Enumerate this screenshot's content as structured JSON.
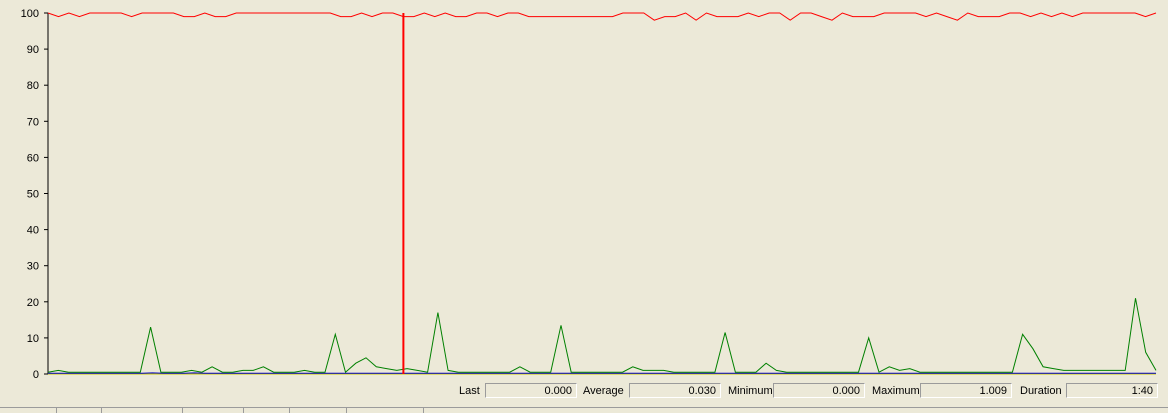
{
  "chart_data": {
    "type": "line",
    "ylim": [
      0,
      100
    ],
    "yticks": [
      "100",
      "90",
      "80",
      "70",
      "60",
      "50",
      "40",
      "30",
      "20",
      "10",
      "0"
    ],
    "grid": false,
    "cursor_index": 34,
    "series": [
      {
        "color": "#FF0000",
        "values": [
          100,
          99,
          100,
          99,
          100,
          100,
          100,
          100,
          99,
          100,
          100,
          100,
          100,
          99,
          99,
          100,
          99,
          99,
          100,
          100,
          100,
          100,
          100,
          100,
          100,
          100,
          100,
          100,
          99,
          99,
          100,
          99,
          100,
          100,
          99,
          99,
          100,
          99,
          100,
          99,
          99,
          100,
          100,
          99,
          100,
          100,
          99,
          99,
          99,
          99,
          99,
          99,
          99,
          99,
          99,
          100,
          100,
          100,
          98,
          99,
          99,
          100,
          98,
          100,
          99,
          99,
          99,
          100,
          99,
          100,
          100,
          98,
          100,
          100,
          99,
          98,
          100,
          99,
          99,
          99,
          100,
          100,
          100,
          100,
          99,
          100,
          99,
          98,
          100,
          99,
          99,
          99,
          100,
          100,
          99,
          100,
          99,
          100,
          99,
          100,
          100,
          100,
          100,
          100,
          100,
          99,
          100
        ]
      },
      {
        "color": "#008000",
        "values": [
          0.5,
          1,
          0.5,
          0.5,
          0.5,
          0.5,
          0.5,
          0.5,
          0.5,
          0.5,
          13,
          0.5,
          0.5,
          0.5,
          1,
          0.5,
          2,
          0.5,
          0.5,
          1,
          1,
          2,
          0.5,
          0.5,
          0.5,
          1,
          0.5,
          0.5,
          11,
          0.5,
          3,
          4.5,
          2,
          1.5,
          1,
          1.5,
          1,
          0.5,
          17,
          1,
          0.5,
          0.5,
          0.5,
          0.5,
          0.5,
          0.5,
          2,
          0.5,
          0.5,
          0.5,
          13.5,
          0.5,
          0.5,
          0.5,
          0.5,
          0.5,
          0.5,
          2,
          1,
          1,
          1,
          0.5,
          0.5,
          0.5,
          0.5,
          0.5,
          11.5,
          0.5,
          0.5,
          0.5,
          3,
          1,
          0.5,
          0.5,
          0.5,
          0.5,
          0.5,
          0.5,
          0.5,
          0.5,
          10,
          0.5,
          2,
          1,
          1.5,
          0.5,
          0.5,
          0.5,
          0.5,
          0.5,
          0.5,
          0.5,
          0.5,
          0.5,
          0.5,
          11,
          7,
          2,
          1.5,
          1,
          1,
          1,
          1,
          1,
          1,
          1,
          21,
          6,
          1
        ]
      },
      {
        "color": "#0000CC",
        "values": [
          0.2,
          0.2,
          0.2,
          0.2,
          0.2,
          0.2,
          0.2,
          0.2,
          0.2,
          0.2,
          0.3,
          0.2,
          0.2,
          0.2,
          0.3,
          0.2,
          0.2,
          0.2,
          0.2,
          0.2,
          0.2,
          0.2,
          0.2,
          0.2,
          0.2,
          0.2,
          0.2,
          0.2,
          0.2,
          0.2,
          0.2,
          0.2,
          0.2,
          0.2,
          0.2,
          0.2,
          0.2,
          0.2,
          0.2,
          0.2,
          0.2,
          0.2,
          0.2,
          0.2,
          0.2,
          0.2,
          0.2,
          0.2,
          0.2,
          0.2,
          0.2,
          0.2,
          0.2,
          0.2,
          0.2,
          0.2,
          0.2,
          0.2,
          0.2,
          0.2,
          0.2,
          0.2,
          0.2,
          0.2,
          0.2,
          0.2,
          0.2,
          0.2,
          0.2,
          0.2,
          0.2,
          0.2,
          0.2,
          0.2,
          0.2,
          0.2,
          0.2,
          0.2,
          0.2,
          0.2,
          0.2,
          0.2,
          0.2,
          0.2,
          0.2,
          0.2,
          0.2,
          0.2,
          0.2,
          0.2,
          0.2,
          0.2,
          0.2,
          0.2,
          0.2,
          0.2,
          0.2,
          0.2,
          0.2,
          0.2,
          0.2,
          0.2,
          0.2,
          0.2,
          0.2,
          0.2,
          0.2
        ]
      },
      {
        "color": "#C8C800",
        "values": [
          0,
          0,
          0,
          0,
          0,
          0,
          0,
          0,
          0,
          0,
          0,
          0,
          0,
          0,
          0,
          0,
          0,
          0,
          0,
          0,
          0,
          0,
          0,
          0,
          0,
          0,
          0,
          0,
          0,
          0,
          0,
          0,
          0,
          0,
          0,
          0,
          0,
          0,
          0,
          0,
          0,
          0,
          0,
          0,
          0,
          0,
          0,
          0,
          0,
          0,
          0,
          0,
          0,
          0,
          0,
          0,
          0,
          0,
          0,
          0,
          0,
          0,
          0,
          0,
          0,
          0,
          0,
          0,
          0,
          0,
          0,
          0,
          0,
          0,
          0,
          0,
          0,
          0,
          0,
          0,
          0,
          0,
          0,
          0,
          0,
          0,
          0,
          0,
          0,
          0,
          0,
          0,
          0,
          0,
          0,
          0,
          0,
          0,
          0,
          0,
          0,
          0,
          0,
          0,
          0,
          0,
          0
        ]
      }
    ]
  },
  "stats": {
    "last_label": "Last",
    "last_value": "0.000",
    "average_label": "Average",
    "average_value": "0.030",
    "minimum_label": "Minimum",
    "minimum_value": "0.000",
    "maximum_label": "Maximum",
    "maximum_value": "1.009",
    "duration_label": "Duration",
    "duration_value": "1:40"
  }
}
